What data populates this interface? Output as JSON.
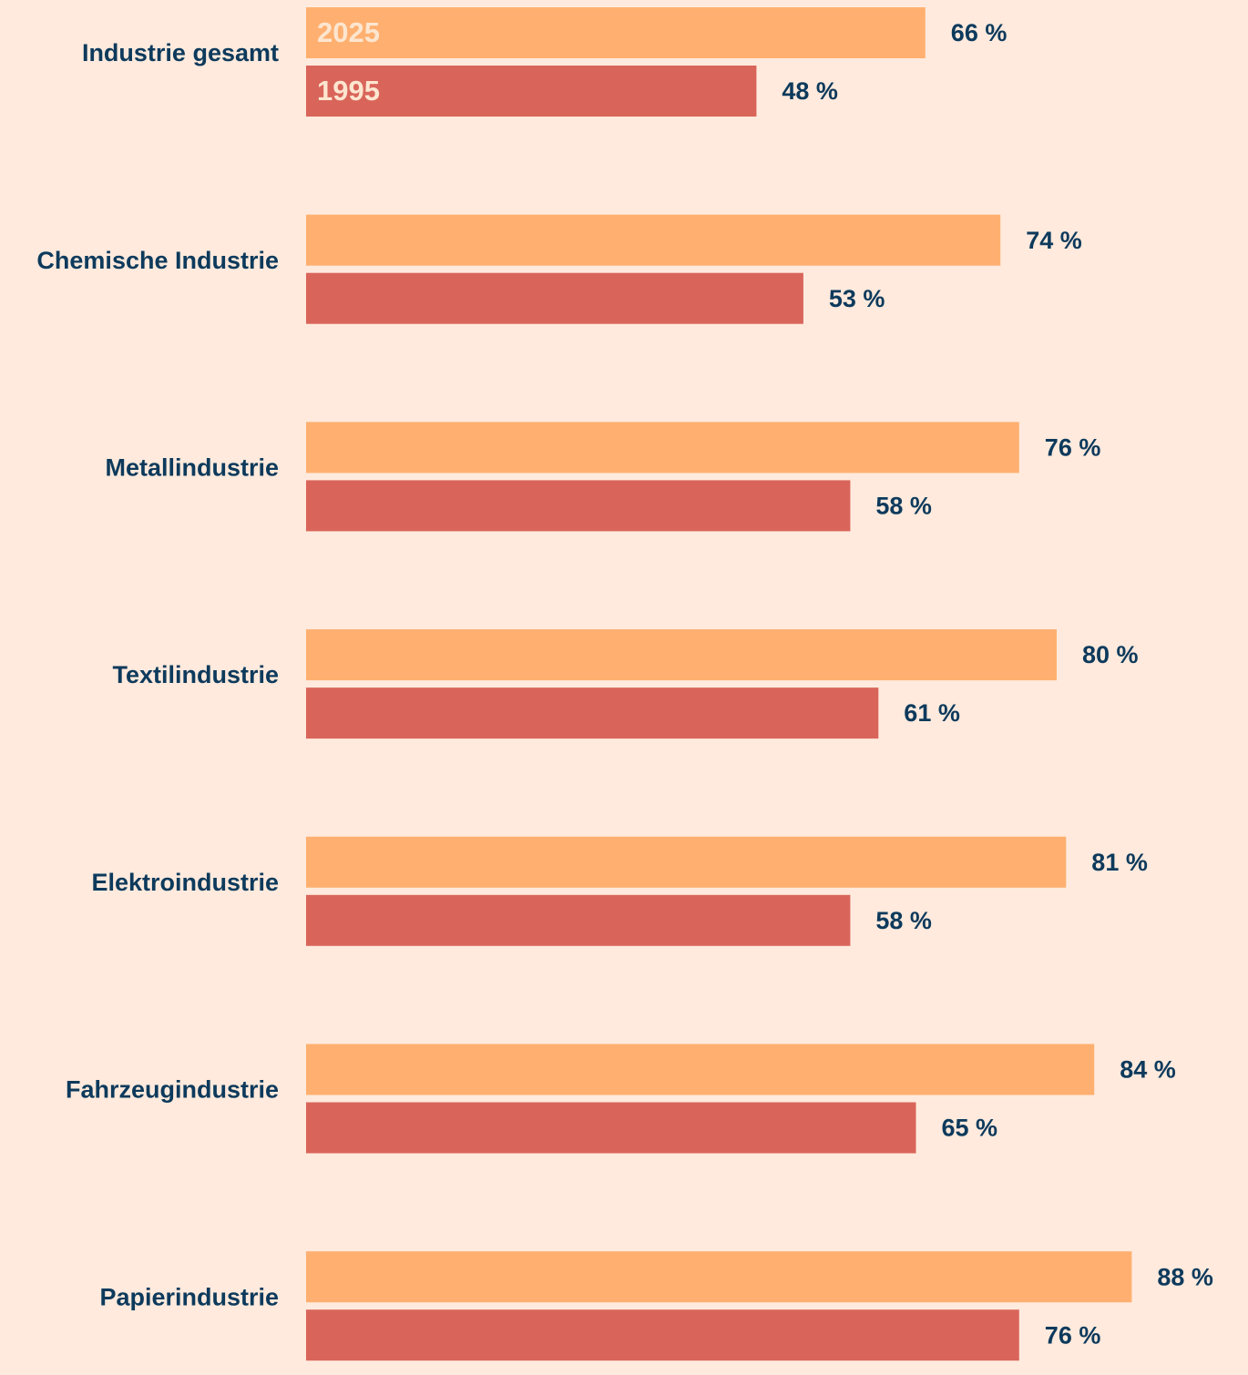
{
  "chart_data": {
    "type": "bar",
    "orientation": "horizontal",
    "categories": [
      "Industrie gesamt",
      "Chemische Industrie",
      "Metallindustrie",
      "Textilindustrie",
      "Elektroindustrie",
      "Fahrzeugindustrie",
      "Papierindustrie"
    ],
    "series": [
      {
        "name": "2025",
        "color": "#ffb070",
        "values": [
          66,
          74,
          76,
          80,
          81,
          84,
          88
        ],
        "value_labels": [
          "66 %",
          "74 %",
          "76 %",
          "80 %",
          "81 %",
          "84 %",
          "88 %"
        ]
      },
      {
        "name": "1995",
        "color": "#d9655a",
        "values": [
          48,
          53,
          58,
          61,
          58,
          65,
          76
        ],
        "value_labels": [
          "48 %",
          "53 %",
          "58 %",
          "61 %",
          "58 %",
          "65 %",
          "76 %"
        ]
      }
    ],
    "xlim": [
      0,
      100
    ]
  }
}
